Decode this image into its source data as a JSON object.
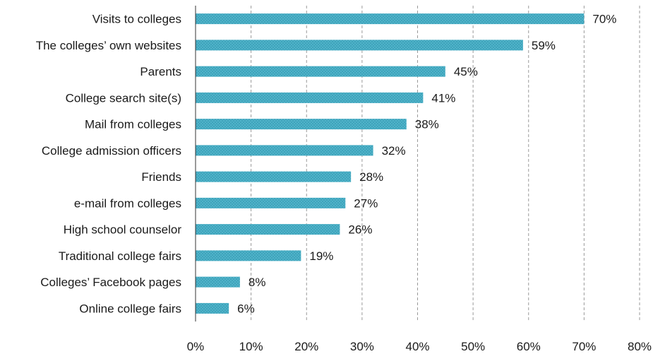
{
  "chart_data": {
    "type": "bar",
    "orientation": "horizontal",
    "categories": [
      "Visits to colleges",
      "The colleges’ own websites",
      "Parents",
      "College search site(s)",
      "Mail from colleges",
      "College admission officers",
      "Friends",
      "e-mail from colleges",
      "High school counselor",
      "Traditional college fairs",
      "Colleges’ Facebook pages",
      "Online college fairs"
    ],
    "values": [
      70,
      59,
      45,
      41,
      38,
      32,
      28,
      27,
      26,
      19,
      8,
      6
    ],
    "data_labels": [
      "70%",
      "59%",
      "45%",
      "41%",
      "38%",
      "32%",
      "28%",
      "27%",
      "26%",
      "19%",
      "8%",
      "6%"
    ],
    "xlim": [
      0,
      80
    ],
    "x_ticks": [
      0,
      10,
      20,
      30,
      40,
      50,
      60,
      70,
      80
    ],
    "x_tick_labels": [
      "0%",
      "10%",
      "20%",
      "30%",
      "40%",
      "50%",
      "60%",
      "70%",
      "80%"
    ],
    "grid": "vertical dashed",
    "legend": "none",
    "colors": {
      "bar": "#4fb3c9",
      "bar_pattern": "#3a9bb2",
      "grid": "#9a9a9a",
      "axis": "#333333",
      "text": "#1a1a1a"
    }
  }
}
